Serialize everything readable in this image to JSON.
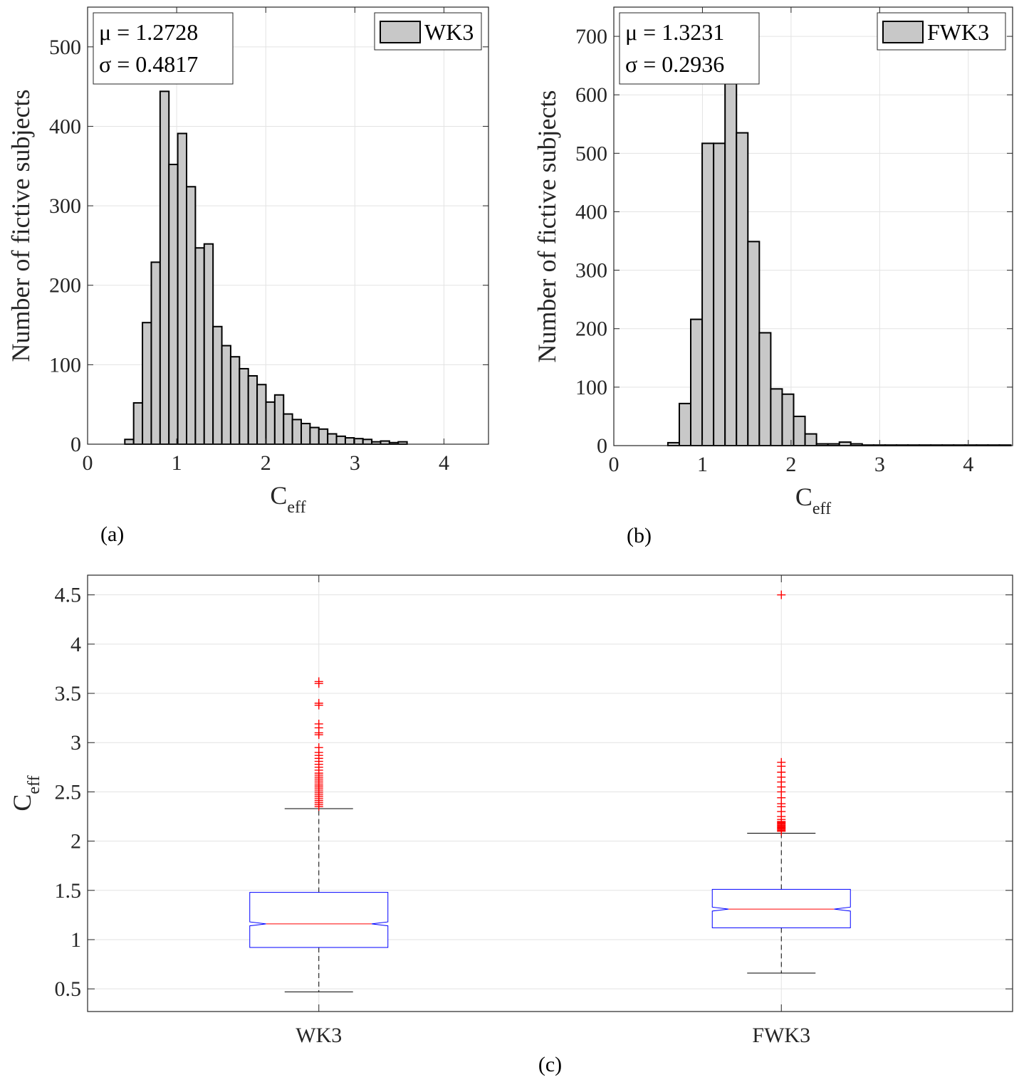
{
  "chart_data": [
    {
      "type": "bar",
      "subtype": "histogram",
      "panel": "(a)",
      "legend": "WK3",
      "stats": {
        "mu": "μ = 1.2728",
        "sigma": "σ = 0.4817"
      },
      "xlabel": "C",
      "xlabel_sub": "eff",
      "ylabel": "Number of fictive subjects",
      "xlim": [
        0,
        4.5
      ],
      "ylim": [
        0,
        550
      ],
      "xticks": [
        0,
        1,
        2,
        3,
        4
      ],
      "yticks": [
        0,
        100,
        200,
        300,
        400,
        500
      ],
      "xtick_labels": [
        "0",
        "1",
        "2",
        "3",
        "4"
      ],
      "ytick_labels": [
        "0",
        "100",
        "200",
        "300",
        "400",
        "500"
      ],
      "grid": true,
      "bin_edges": [
        0.418,
        0.517,
        0.616,
        0.715,
        0.814,
        0.913,
        1.012,
        1.111,
        1.21,
        1.309,
        1.408,
        1.507,
        1.606,
        1.705,
        1.804,
        1.903,
        2.002,
        2.101,
        2.2,
        2.299,
        2.398,
        2.497,
        2.596,
        2.695,
        2.794,
        2.893,
        2.992,
        3.091,
        3.19,
        3.289,
        3.388,
        3.487,
        3.586
      ],
      "values": [
        6,
        52,
        153,
        229,
        444,
        352,
        391,
        324,
        247,
        252,
        148,
        124,
        110,
        95,
        86,
        75,
        53,
        62,
        38,
        31,
        26,
        21,
        19,
        13,
        10,
        8,
        7,
        6,
        3,
        4,
        2,
        3
      ]
    },
    {
      "type": "bar",
      "subtype": "histogram",
      "panel": "(b)",
      "legend": "FWK3",
      "stats": {
        "mu": "μ = 1.3231",
        "sigma": "σ = 0.2936"
      },
      "xlabel": "C",
      "xlabel_sub": "eff",
      "ylabel": "Number of fictive subjects",
      "xlim": [
        0,
        4.5
      ],
      "ylim": [
        0,
        750
      ],
      "xticks": [
        0,
        1,
        2,
        3,
        4
      ],
      "yticks": [
        0,
        100,
        200,
        300,
        400,
        500,
        600,
        700
      ],
      "xtick_labels": [
        "0",
        "1",
        "2",
        "3",
        "4"
      ],
      "ytick_labels": [
        "0",
        "100",
        "200",
        "300",
        "400",
        "500",
        "600",
        "700"
      ],
      "grid": true,
      "bin_edges": [
        0.61,
        0.739,
        0.868,
        0.997,
        1.126,
        1.255,
        1.384,
        1.513,
        1.642,
        1.771,
        1.9,
        2.029,
        2.158,
        2.287,
        2.416,
        2.545,
        2.674,
        2.803,
        2.932,
        3.061,
        3.19,
        3.319,
        3.448,
        3.577,
        3.706,
        3.835,
        3.964,
        4.093,
        4.222,
        4.351,
        4.48
      ],
      "values": [
        5,
        72,
        216,
        517,
        517,
        619,
        535,
        349,
        193,
        97,
        88,
        50,
        20,
        3,
        3,
        6,
        3,
        1,
        1,
        1,
        1,
        1,
        1,
        1,
        1,
        1,
        1,
        1,
        1,
        1
      ]
    },
    {
      "type": "box",
      "panel": "(c)",
      "ylabel": "C",
      "ylabel_sub": "eff",
      "ylim": [
        0.27,
        4.7
      ],
      "yticks": [
        0.5,
        1,
        1.5,
        2,
        2.5,
        3,
        3.5,
        4,
        4.5
      ],
      "ytick_labels": [
        "0.5",
        "1",
        "1.5",
        "2",
        "2.5",
        "3",
        "3.5",
        "4",
        "4.5"
      ],
      "grid": true,
      "categories": [
        "WK3",
        "FWK3"
      ],
      "boxes": [
        {
          "name": "WK3",
          "whisker_low": 0.47,
          "q1": 0.92,
          "median": 1.16,
          "q3": 1.48,
          "whisker_high": 2.33,
          "notch_low": 1.14,
          "notch_high": 1.18,
          "outliers": [
            2.35,
            2.37,
            2.39,
            2.41,
            2.43,
            2.45,
            2.47,
            2.49,
            2.51,
            2.53,
            2.55,
            2.57,
            2.59,
            2.61,
            2.63,
            2.65,
            2.67,
            2.69,
            2.72,
            2.75,
            2.78,
            2.81,
            2.84,
            2.87,
            2.9,
            2.95,
            3.08,
            3.1,
            3.15,
            3.19,
            3.38,
            3.4,
            3.6,
            3.62
          ]
        },
        {
          "name": "FWK3",
          "whisker_low": 0.66,
          "q1": 1.12,
          "median": 1.31,
          "q3": 1.51,
          "whisker_high": 2.08,
          "notch_low": 1.29,
          "notch_high": 1.33,
          "outliers": [
            2.1,
            2.11,
            2.12,
            2.13,
            2.14,
            2.15,
            2.16,
            2.17,
            2.18,
            2.19,
            2.2,
            2.22,
            2.25,
            2.3,
            2.35,
            2.38,
            2.44,
            2.5,
            2.55,
            2.6,
            2.65,
            2.7,
            2.76,
            2.8,
            4.5
          ]
        }
      ]
    }
  ]
}
